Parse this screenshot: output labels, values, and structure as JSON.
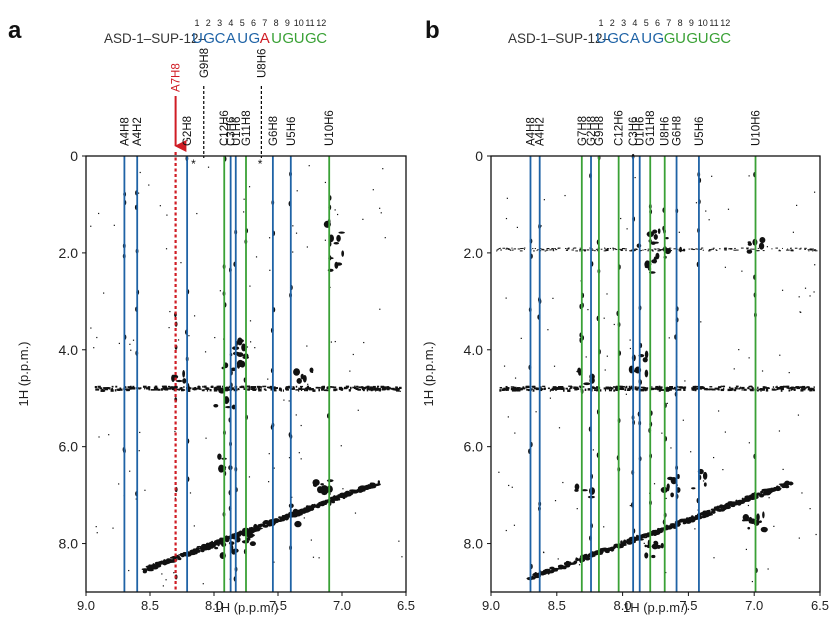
{
  "figure": {
    "panels": [
      {
        "letter": "a",
        "construct_prefix": "ASD-1–SUP-12–",
        "sequence": [
          {
            "n": "1",
            "base": "U",
            "color": "#1f63a6"
          },
          {
            "n": "2",
            "base": "G",
            "color": "#1f63a6"
          },
          {
            "n": "3",
            "base": "C",
            "color": "#1f63a6"
          },
          {
            "n": "4",
            "base": "A",
            "color": "#1f63a6"
          },
          {
            "n": "5",
            "base": "U",
            "color": "#1f63a6"
          },
          {
            "n": "6",
            "base": "G",
            "color": "#1f63a6"
          },
          {
            "n": "7",
            "base": "A",
            "color": "#d01c24"
          },
          {
            "n": "8",
            "base": "U",
            "color": "#3aa136"
          },
          {
            "n": "9",
            "base": "G",
            "color": "#3aa136"
          },
          {
            "n": "10",
            "base": "U",
            "color": "#3aa136"
          },
          {
            "n": "11",
            "base": "G",
            "color": "#3aa136"
          },
          {
            "n": "12",
            "base": "C",
            "color": "#3aa136"
          }
        ]
      },
      {
        "letter": "b",
        "construct_prefix": "ASD-1–SUP-12–",
        "sequence": [
          {
            "n": "1",
            "base": "U",
            "color": "#1f63a6"
          },
          {
            "n": "2",
            "base": "G",
            "color": "#1f63a6"
          },
          {
            "n": "3",
            "base": "C",
            "color": "#1f63a6"
          },
          {
            "n": "4",
            "base": "A",
            "color": "#1f63a6"
          },
          {
            "n": "5",
            "base": "U",
            "color": "#1f63a6"
          },
          {
            "n": "6",
            "base": "G",
            "color": "#1f63a6"
          },
          {
            "n": "7",
            "base": "G",
            "color": "#3aa136"
          },
          {
            "n": "8",
            "base": "U",
            "color": "#3aa136"
          },
          {
            "n": "9",
            "base": "G",
            "color": "#3aa136"
          },
          {
            "n": "10",
            "base": "U",
            "color": "#3aa136"
          },
          {
            "n": "11",
            "base": "G",
            "color": "#3aa136"
          },
          {
            "n": "12",
            "base": "C",
            "color": "#3aa136"
          }
        ]
      }
    ],
    "asterisk": "*"
  },
  "chart_data": [
    {
      "type": "scatter",
      "panel": "a",
      "title": "",
      "xlabel": "1H (p.p.m.)",
      "ylabel": "1H (p.p.m.)",
      "xlim": [
        9.0,
        6.5
      ],
      "ylim": [
        0,
        9.0
      ],
      "x_ticks": [
        "9.0",
        "8.5",
        "8.0",
        "7.5",
        "7.0",
        "6.5"
      ],
      "x_tick_values": [
        9.0,
        8.5,
        8.0,
        7.5,
        7.0,
        6.5
      ],
      "y_ticks": [
        "0",
        "2.0",
        "4.0",
        "6.0",
        "8.0"
      ],
      "y_tick_values": [
        0,
        2.0,
        4.0,
        6.0,
        8.0
      ],
      "grid": false,
      "assignment_lines": [
        {
          "label": "A4H8",
          "shift": 8.7,
          "color": "#1f63a6",
          "style": "solid"
        },
        {
          "label": "A4H2",
          "shift": 8.6,
          "color": "#1f63a6",
          "style": "solid"
        },
        {
          "label": "A7H8",
          "shift": 8.3,
          "color": "#d01c24",
          "style": "dotted",
          "highlight": true
        },
        {
          "label": "G2H8",
          "shift": 8.21,
          "color": "#1f63a6",
          "style": "solid"
        },
        {
          "label": "G9H8",
          "shift": 8.08,
          "color": "#000000",
          "style": "dashed",
          "stub": true
        },
        {
          "label": "C12H6",
          "shift": 7.92,
          "color": "#3aa136",
          "style": "solid"
        },
        {
          "label": "C3H6",
          "shift": 7.87,
          "color": "#1f63a6",
          "style": "solid"
        },
        {
          "label": "U1H6",
          "shift": 7.83,
          "color": "#1f63a6",
          "style": "solid"
        },
        {
          "label": "G11H8",
          "shift": 7.75,
          "color": "#3aa136",
          "style": "solid"
        },
        {
          "label": "U8H6",
          "shift": 7.63,
          "color": "#000000",
          "style": "dashed",
          "stub": true
        },
        {
          "label": "G6H8",
          "shift": 7.54,
          "color": "#1f63a6",
          "style": "solid"
        },
        {
          "label": "U5H6",
          "shift": 7.4,
          "color": "#1f63a6",
          "style": "solid"
        },
        {
          "label": "U10H6",
          "shift": 7.1,
          "color": "#3aa136",
          "style": "solid"
        }
      ]
    },
    {
      "type": "scatter",
      "panel": "b",
      "title": "",
      "xlabel": "1H (p.p.m.)",
      "ylabel": "1H (p.p.m.)",
      "xlim": [
        9.0,
        6.5
      ],
      "ylim": [
        0,
        9.0
      ],
      "x_ticks": [
        "9.0",
        "8.5",
        "8.0",
        "7.5",
        "7.0",
        "6.5"
      ],
      "x_tick_values": [
        9.0,
        8.5,
        8.0,
        7.5,
        7.0,
        6.5
      ],
      "y_ticks": [
        "0",
        "2.0",
        "4.0",
        "6.0",
        "8.0"
      ],
      "y_tick_values": [
        0,
        2.0,
        4.0,
        6.0,
        8.0
      ],
      "grid": false,
      "assignment_lines": [
        {
          "label": "A4H8",
          "shift": 8.7,
          "color": "#1f63a6",
          "style": "solid"
        },
        {
          "label": "A4H2",
          "shift": 8.63,
          "color": "#1f63a6",
          "style": "solid"
        },
        {
          "label": "G7H8",
          "shift": 8.31,
          "color": "#3aa136",
          "style": "solid"
        },
        {
          "label": "G2H8",
          "shift": 8.24,
          "color": "#1f63a6",
          "style": "solid"
        },
        {
          "label": "G9H8",
          "shift": 8.18,
          "color": "#3aa136",
          "style": "solid"
        },
        {
          "label": "C12H6",
          "shift": 8.03,
          "color": "#3aa136",
          "style": "solid"
        },
        {
          "label": "C3H6",
          "shift": 7.92,
          "color": "#1f63a6",
          "style": "solid"
        },
        {
          "label": "U1H6",
          "shift": 7.87,
          "color": "#1f63a6",
          "style": "solid"
        },
        {
          "label": "G11H8",
          "shift": 7.79,
          "color": "#3aa136",
          "style": "solid"
        },
        {
          "label": "U8H6",
          "shift": 7.68,
          "color": "#3aa136",
          "style": "solid"
        },
        {
          "label": "G6H8",
          "shift": 7.59,
          "color": "#1f63a6",
          "style": "solid"
        },
        {
          "label": "U5H6",
          "shift": 7.42,
          "color": "#1f63a6",
          "style": "solid"
        },
        {
          "label": "U10H6",
          "shift": 6.99,
          "color": "#3aa136",
          "style": "solid"
        }
      ]
    }
  ]
}
